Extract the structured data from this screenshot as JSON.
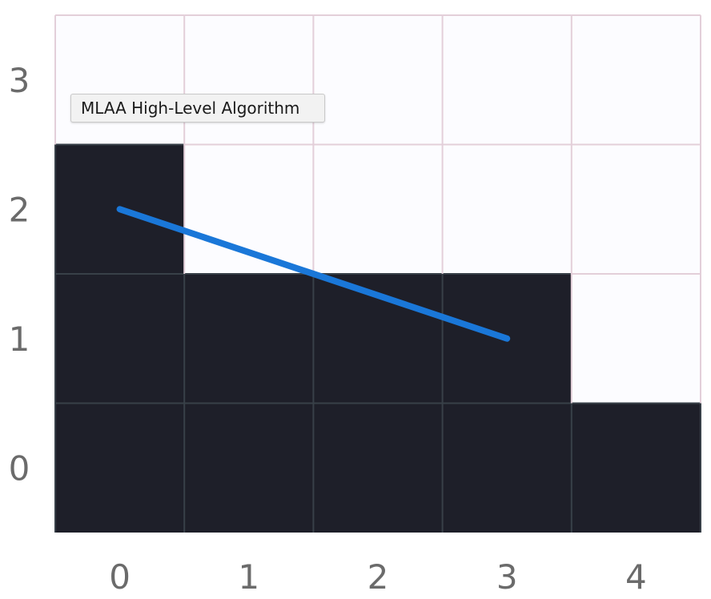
{
  "tooltip": {
    "text": "MLAA High-Level Algorithm"
  },
  "grid": {
    "columns": 5,
    "rows": 4,
    "x_labels": [
      "0",
      "1",
      "2",
      "3",
      "4"
    ],
    "y_labels": [
      "0",
      "1",
      "2",
      "3"
    ],
    "filled_cells": [
      [
        0,
        0
      ],
      [
        1,
        0
      ],
      [
        2,
        0
      ],
      [
        3,
        0
      ],
      [
        4,
        0
      ],
      [
        0,
        1
      ],
      [
        1,
        1
      ],
      [
        2,
        1
      ],
      [
        3,
        1
      ],
      [
        0,
        2
      ]
    ],
    "colors": {
      "filled": "#1e1f29",
      "empty": "#fcfcff",
      "empty_grid": "#e3cfd9",
      "filled_grid": "#384048",
      "line": "#1a77d8"
    }
  },
  "edge_line": {
    "from": [
      0.5,
      2.0
    ],
    "to": [
      3.5,
      1.0
    ]
  }
}
